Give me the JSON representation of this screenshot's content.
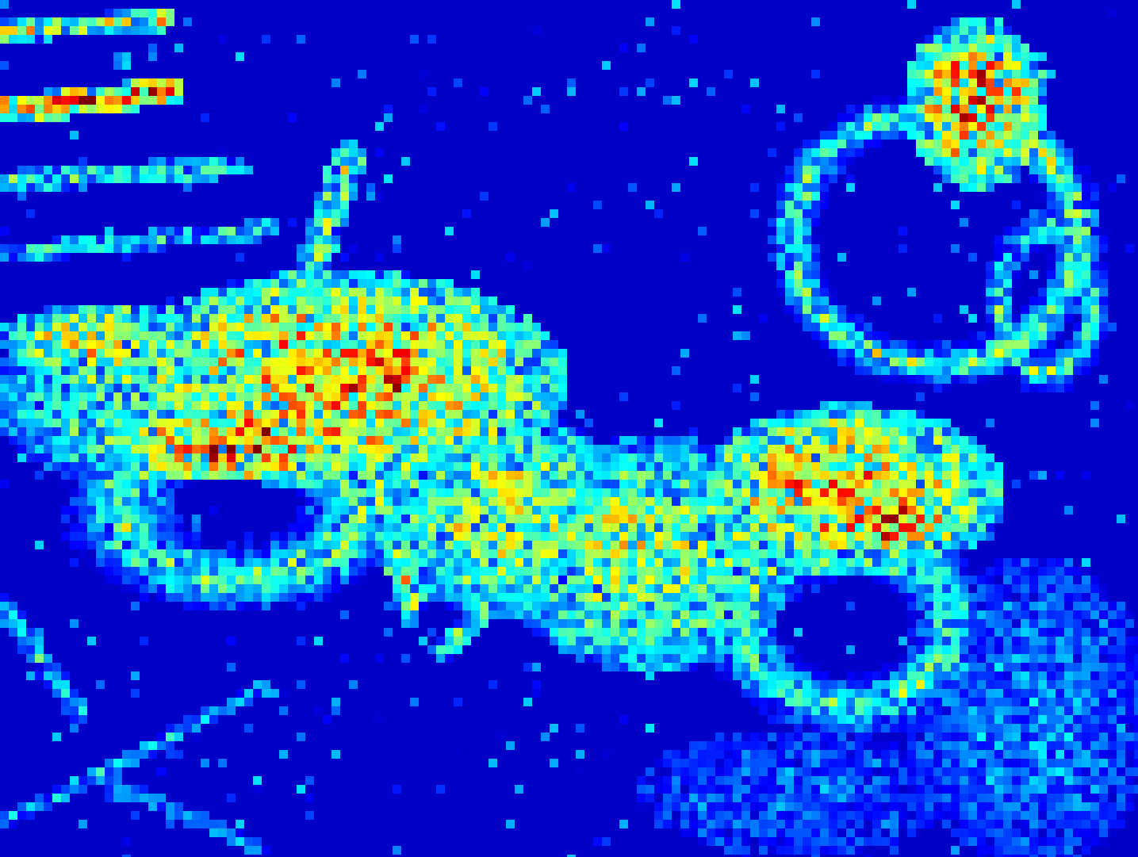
{
  "image": {
    "kind": "saliency heatmap",
    "subject": "motorcycle",
    "colormap": "jet",
    "colormap_stops": [
      "#00008f",
      "#0000ff",
      "#00ffff",
      "#ffff00",
      "#ff0000",
      "#800000"
    ],
    "background_color": "#00008f"
  }
}
